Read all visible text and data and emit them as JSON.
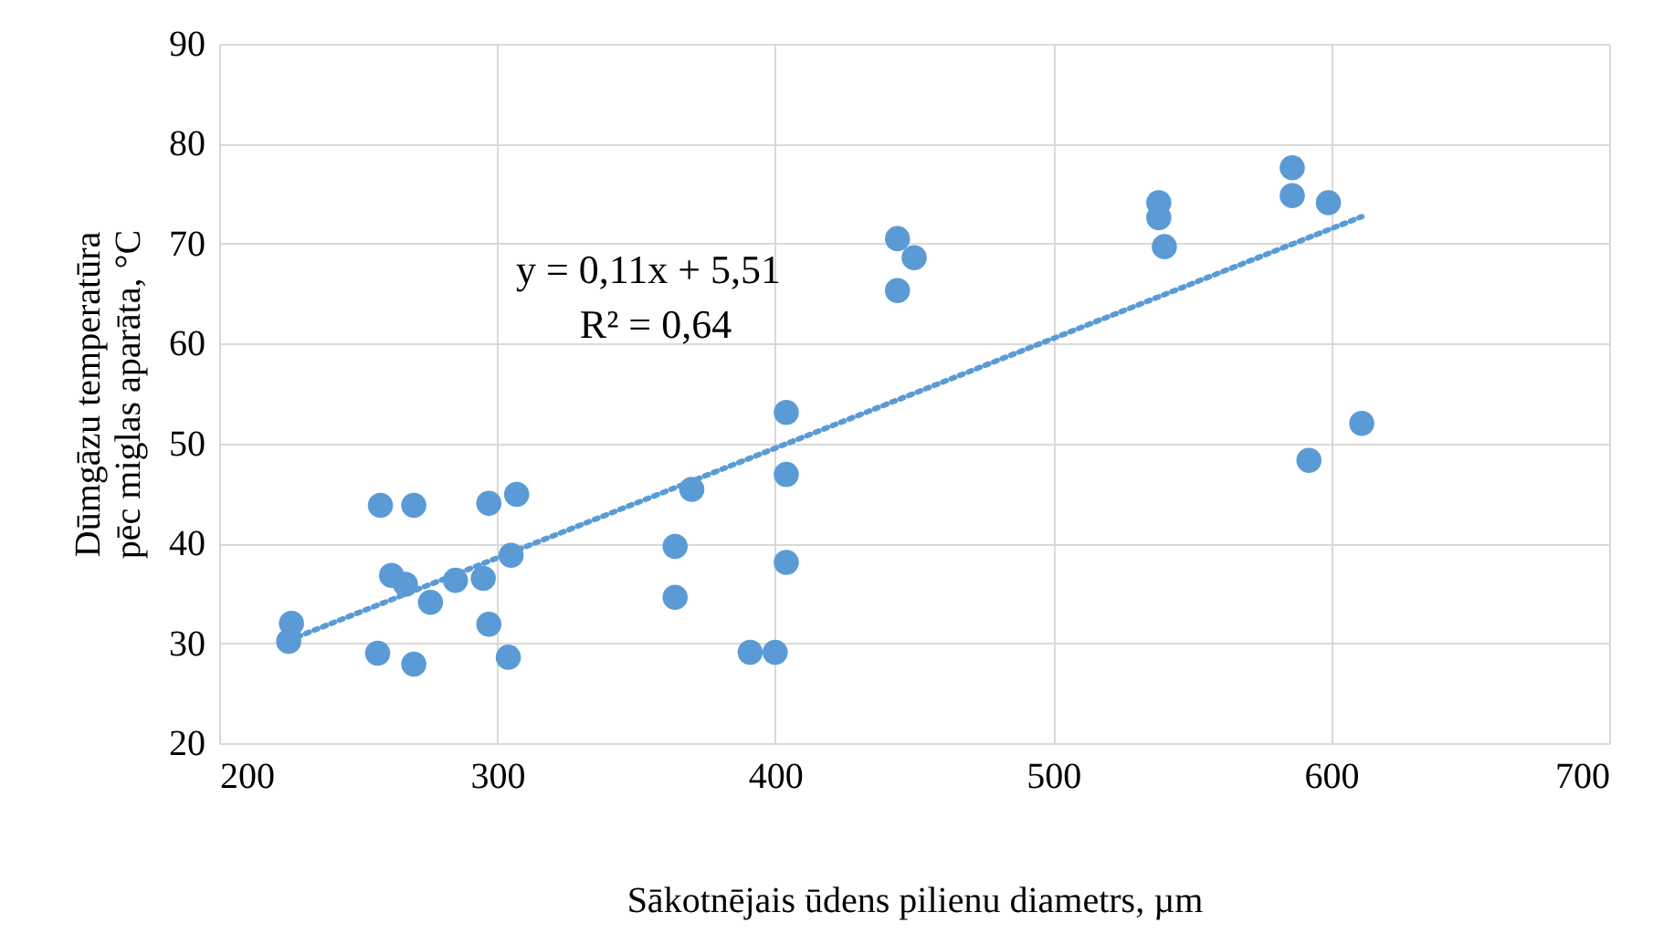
{
  "chart_data": {
    "type": "scatter",
    "xlabel": "Sākotnējais ūdens pilienu diametrs, µm",
    "ylabel": "Dūmgāzu temperatūra pēc miglas aparāta, °C",
    "annotations": [
      "y = 0,11x + 5,51",
      "R² = 0,64"
    ],
    "xlim": [
      200,
      700
    ],
    "xticks": [
      200,
      300,
      400,
      500,
      600,
      700
    ],
    "ylim": [
      20,
      90
    ],
    "yticks": [
      20,
      30,
      40,
      50,
      60,
      70,
      80,
      90
    ],
    "grid": true,
    "marker": "circle",
    "series": [
      {
        "color": "#5b9bd5",
        "x": [
          225,
          226,
          257,
          258,
          270,
          262,
          267,
          270,
          276,
          285,
          295,
          297,
          297,
          304,
          305,
          307,
          364,
          364,
          370,
          391,
          400,
          404,
          404,
          404,
          444,
          444,
          450,
          538,
          538,
          540,
          586,
          586,
          599,
          592,
          611
        ],
        "values": [
          30.2,
          32.0,
          29.0,
          43.8,
          43.8,
          36.8,
          35.9,
          27.9,
          34.1,
          36.3,
          36.5,
          31.9,
          44.0,
          28.6,
          38.8,
          44.9,
          39.7,
          34.6,
          45.4,
          29.1,
          29.1,
          38.1,
          46.9,
          53.1,
          70.5,
          65.3,
          68.6,
          74.1,
          72.6,
          69.7,
          77.6,
          74.8,
          74.1,
          48.3,
          52.0
        ]
      },
      {
        "type": "line",
        "color": "#5b9bd5",
        "line_style": "dotted",
        "marker": "none",
        "x": [
          225,
          611
        ],
        "values": [
          30.3,
          72.7
        ]
      }
    ]
  }
}
